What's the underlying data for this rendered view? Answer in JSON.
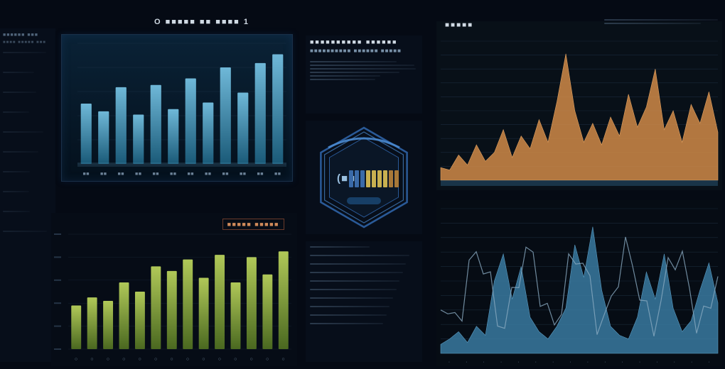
{
  "global": {
    "bg": "#050a14",
    "panel_bg": "#0a1422",
    "grid_color": "#2a4058",
    "text_color": "#c8d4e0",
    "muted_text": "#7890a8"
  },
  "left_sidebar": {
    "heading": "■■■■■■ ■■■",
    "sub": "■■■■ ■■■■■ ■■■",
    "rows": 10
  },
  "panel_top_left": {
    "title": "O ■■■■■ ■■ ■■■■ 1",
    "type": "bar",
    "values": [
      55,
      48,
      70,
      45,
      72,
      50,
      78,
      56,
      88,
      65,
      92,
      100
    ],
    "bar_color_top": "#6fb8d8",
    "bar_color_bottom": "#1a5a78",
    "ylim": [
      0,
      110
    ],
    "bg_gradient_top": "#0a2236",
    "bg_gradient_bottom": "#04101c",
    "frame_color": "#1a3048",
    "xaxis_ticks": 12
  },
  "panel_bottom_left": {
    "badge": "■■■■■ ■■■■■",
    "type": "bar",
    "values": [
      38,
      45,
      42,
      58,
      50,
      72,
      68,
      78,
      62,
      82,
      58,
      80,
      65,
      85
    ],
    "bar_color_top": "#b0c858",
    "bar_color_bottom": "#4a6820",
    "ylim": [
      0,
      100
    ],
    "bg": "#060c16",
    "xaxis_ticks": 14
  },
  "panel_top_right": {
    "title": "■■■■■",
    "header_lines": 3,
    "type": "area-spikes",
    "values": [
      10,
      8,
      20,
      12,
      28,
      15,
      22,
      40,
      18,
      35,
      25,
      48,
      30,
      62,
      100,
      55,
      30,
      45,
      28,
      50,
      35,
      68,
      42,
      58,
      88,
      40,
      55,
      30,
      60,
      45,
      70,
      38
    ],
    "fill_color": "#d08a48",
    "line_color": "#e0a060",
    "baseline_color": "#2a5878",
    "ylim": [
      0,
      110
    ],
    "bg": "#081018",
    "grid_rows": 10
  },
  "panel_bottom_right": {
    "type": "area-spikes",
    "values": [
      5,
      8,
      12,
      6,
      15,
      10,
      40,
      55,
      30,
      48,
      20,
      12,
      8,
      15,
      25,
      60,
      42,
      70,
      35,
      15,
      10,
      8,
      20,
      45,
      30,
      55,
      25,
      12,
      18,
      35,
      50,
      28
    ],
    "fill_color": "#3a7aa0",
    "line_color": "#5a9ac0",
    "scribble_color": "#8aaac0",
    "ylim": [
      0,
      80
    ],
    "bg": "#060c14",
    "grid_rows": 10
  },
  "center_top_block": {
    "title": "■■■■■■■■■■ ■■■■■■",
    "sub": "■■■■■■■■■■ ■■■■■■ ■■■■■",
    "meta_lines": 6
  },
  "center_gauge": {
    "label": "(■■",
    "segments": 9,
    "segment_colors": [
      "#3a6aa8",
      "#3a6aa8",
      "#3a6aa8",
      "#c8b050",
      "#c8b050",
      "#c8b050",
      "#c8b050",
      "#a87838",
      "#a87838"
    ],
    "ring_color": "#2a5a98",
    "ring_highlight": "#4a8ad0",
    "bg": "#081420"
  },
  "center_bottom_block": {
    "meta_lines": 10
  }
}
